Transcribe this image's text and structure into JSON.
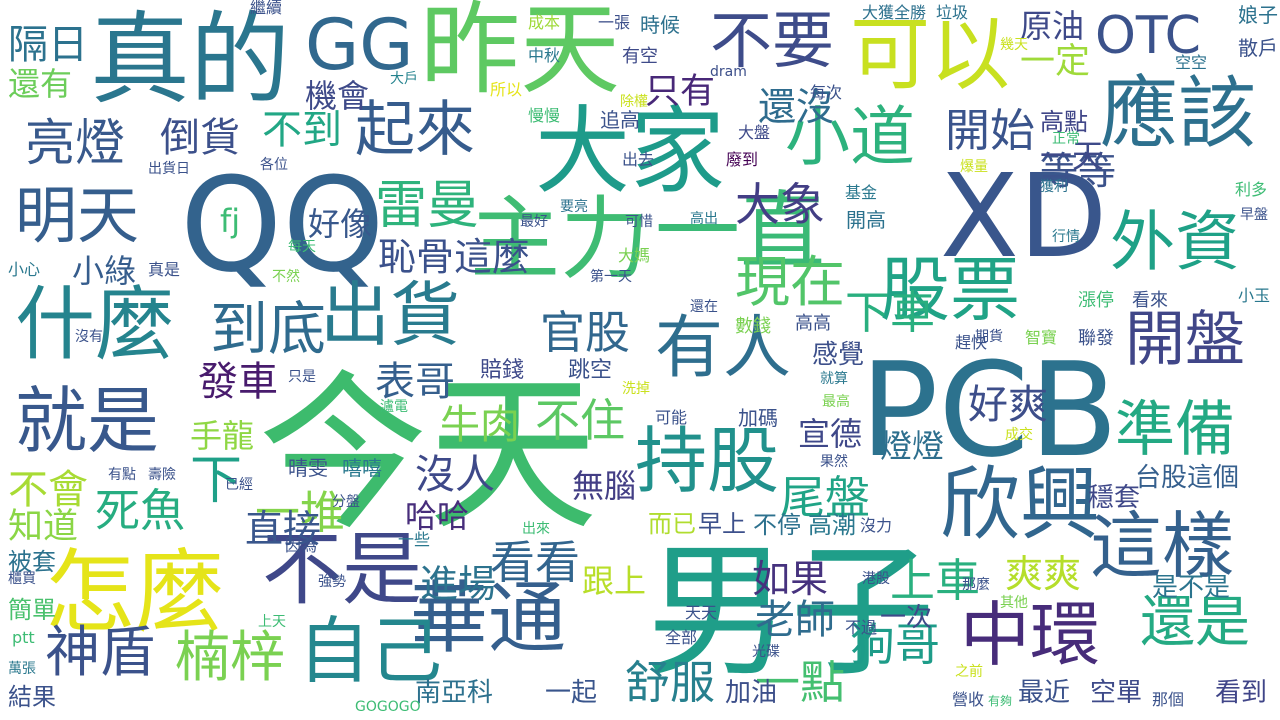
{
  "words": [
    {
      "text": "今天",
      "color": "#3dbb6d"
    },
    {
      "text": "PCB",
      "color": "#2c728e"
    },
    {
      "text": "QQ",
      "color": "#33638d"
    },
    {
      "text": "XD",
      "color": "#39568c"
    },
    {
      "text": "男子",
      "color": "#1f9e89"
    },
    {
      "text": "真的",
      "color": "#2a768e"
    },
    {
      "text": "昨天",
      "color": "#5ec962"
    },
    {
      "text": "大家",
      "color": "#1e9b8a"
    },
    {
      "text": "GG",
      "color": "#31688e"
    },
    {
      "text": "主力",
      "color": "#3fbc73"
    },
    {
      "text": "一直",
      "color": "#3aba76"
    },
    {
      "text": "怎麼",
      "color": "#e5e419"
    },
    {
      "text": "不是",
      "color": "#3f4889"
    },
    {
      "text": "什麼",
      "color": "#25848e"
    },
    {
      "text": "可以",
      "color": "#c8e020"
    },
    {
      "text": "不要",
      "color": "#3e4c8a"
    },
    {
      "text": "應該",
      "color": "#2d708e"
    },
    {
      "text": "欣興",
      "color": "#31668e"
    },
    {
      "text": "中環",
      "color": "#472c7a"
    },
    {
      "text": "出貨",
      "color": "#297b8e"
    },
    {
      "text": "華通",
      "color": "#355f8d"
    },
    {
      "text": "這樣",
      "color": "#34618d"
    },
    {
      "text": "就是",
      "color": "#38588c"
    },
    {
      "text": "自己",
      "color": "#24878e"
    },
    {
      "text": "持股",
      "color": "#21918c"
    },
    {
      "text": "股票",
      "color": "#20a386"
    },
    {
      "text": "有人",
      "color": "#2e6e8e"
    },
    {
      "text": "外資",
      "color": "#1fa187"
    },
    {
      "text": "小道",
      "color": "#2db27d"
    },
    {
      "text": "OTC",
      "color": "#3b528b"
    },
    {
      "text": "開盤",
      "color": "#404688"
    },
    {
      "text": "準備",
      "color": "#23a983"
    },
    {
      "text": "到底",
      "color": "#2f6b8e"
    },
    {
      "text": "起來",
      "color": "#365c8d"
    },
    {
      "text": "現在",
      "color": "#52c569"
    },
    {
      "text": "明天",
      "color": "#355e8d"
    },
    {
      "text": "雷曼",
      "color": "#2eb37c"
    },
    {
      "text": "神盾",
      "color": "#3b528b"
    },
    {
      "text": "楠梓",
      "color": "#7ad151"
    },
    {
      "text": "還是",
      "color": "#24aa83"
    },
    {
      "text": "亮燈",
      "color": "#38598c"
    },
    {
      "text": "死魚",
      "color": "#27ad81"
    },
    {
      "text": "一堆",
      "color": "#84d44b"
    },
    {
      "text": "狗哥",
      "color": "#1e9c89"
    },
    {
      "text": "一點",
      "color": "#44bf70"
    },
    {
      "text": "上車",
      "color": "#2ab07f"
    },
    {
      "text": "官股",
      "color": "#31678e"
    },
    {
      "text": "開始",
      "color": "#3a548c"
    },
    {
      "text": "大象",
      "color": "#433e85"
    },
    {
      "text": "倒貨",
      "color": "#3c508b"
    },
    {
      "text": "不到",
      "color": "#22a785"
    },
    {
      "text": "下車",
      "color": "#29af7f"
    },
    {
      "text": "看看",
      "color": "#32658e"
    },
    {
      "text": "尾盤",
      "color": "#20a486"
    },
    {
      "text": "發車",
      "color": "#481b6d"
    },
    {
      "text": "表哥",
      "color": "#355f8d"
    },
    {
      "text": "下",
      "color": "#1fa088"
    },
    {
      "text": "牛肉",
      "color": "#7ad151"
    },
    {
      "text": "直接",
      "color": "#39568c"
    },
    {
      "text": "舒服",
      "color": "#27808e"
    },
    {
      "text": "沒人",
      "color": "#3e4989"
    },
    {
      "text": "老師",
      "color": "#2f6c8e"
    },
    {
      "text": "不會",
      "color": "#a8db34"
    },
    {
      "text": "知道",
      "color": "#8bd646"
    },
    {
      "text": "恥骨這麼",
      "color": "#3b518b"
    },
    {
      "text": "好爽",
      "color": "#3d4e8a"
    },
    {
      "text": "爽爽",
      "color": "#b5de2b"
    },
    {
      "text": "進場",
      "color": "#2c738e"
    },
    {
      "text": "如果",
      "color": "#46327e"
    },
    {
      "text": "小綠",
      "color": "#365d8d"
    },
    {
      "text": "不住",
      "color": "#5cc863"
    },
    {
      "text": "等等",
      "color": "#3b528b"
    },
    {
      "text": "還沒",
      "color": "#2f6c8e"
    },
    {
      "text": "機會",
      "color": "#3e4a89"
    },
    {
      "text": "原油",
      "color": "#3e4989"
    },
    {
      "text": "隔日",
      "color": "#2c728e"
    },
    {
      "text": "還有",
      "color": "#6ccd5a"
    },
    {
      "text": "只有",
      "color": "#482878"
    },
    {
      "text": "一定",
      "color": "#9fda3a"
    },
    {
      "text": "好像",
      "color": "#38588c"
    },
    {
      "text": "fj",
      "color": "#3dbc74"
    },
    {
      "text": "一天",
      "color": "#3e4a89"
    },
    {
      "text": "哈哈",
      "color": "#472d7b"
    },
    {
      "text": "手龍",
      "color": "#8fd744"
    },
    {
      "text": "無腦",
      "color": "#433e85"
    },
    {
      "text": "宣德",
      "color": "#3f4889"
    },
    {
      "text": "燈燈",
      "color": "#2e6f8e"
    },
    {
      "text": "感覺",
      "color": "#3c4f8a"
    },
    {
      "text": "跟上",
      "color": "#b8de29"
    },
    {
      "text": "是不是",
      "color": "#2b748e"
    },
    {
      "text": "台股這個",
      "color": "#355f8d"
    },
    {
      "text": "南亞科",
      "color": "#2d718e"
    },
    {
      "text": "一起",
      "color": "#39558c"
    },
    {
      "text": "加油",
      "color": "#3c4f8a"
    },
    {
      "text": "最近",
      "color": "#3b528b"
    },
    {
      "text": "空單",
      "color": "#3e4a89"
    },
    {
      "text": "看到",
      "color": "#404588"
    },
    {
      "text": "一次",
      "color": "#3e4989"
    },
    {
      "text": "穩套",
      "color": "#3f4889"
    },
    {
      "text": "高潮",
      "color": "#2a788e"
    },
    {
      "text": "不停",
      "color": "#2d718e"
    },
    {
      "text": "而已",
      "color": "#b0dd2f"
    },
    {
      "text": "早上",
      "color": "#3c508b"
    },
    {
      "text": "被套",
      "color": "#2c728e"
    },
    {
      "text": "簡單",
      "color": "#4ac16d"
    },
    {
      "text": "結果",
      "color": "#3b528b"
    },
    {
      "text": "高點",
      "color": "#404688"
    },
    {
      "text": "娘子",
      "color": "#2c728e"
    },
    {
      "text": "散戶",
      "color": "#3b528b"
    },
    {
      "text": "大獲全勝",
      "color": "#2d718e"
    },
    {
      "text": "垃圾",
      "color": "#2c728e"
    },
    {
      "text": "時候",
      "color": "#2d718e"
    },
    {
      "text": "有空",
      "color": "#3e4a89"
    },
    {
      "text": "一張",
      "color": "#3c4f8a"
    },
    {
      "text": "繼續",
      "color": "#3b528b"
    },
    {
      "text": "成本",
      "color": "#9fda3a"
    },
    {
      "text": "中秋",
      "color": "#2a788e"
    },
    {
      "text": "大戶",
      "color": "#25838e"
    },
    {
      "text": "所以",
      "color": "#e5e419"
    },
    {
      "text": "除權",
      "color": "#cae11f"
    },
    {
      "text": "每次",
      "color": "#3b528b"
    },
    {
      "text": "dram",
      "color": "#3c4f8a"
    },
    {
      "text": "空空",
      "color": "#2c728e"
    },
    {
      "text": "幾天",
      "color": "#cae11f"
    },
    {
      "text": "追高",
      "color": "#3b528b"
    },
    {
      "text": "慢慢",
      "color": "#3dbc74"
    },
    {
      "text": "大盤",
      "color": "#3e4a89"
    },
    {
      "text": "廢到",
      "color": "#440154"
    },
    {
      "text": "出去",
      "color": "#3b528b"
    },
    {
      "text": "出貨日",
      "color": "#3b528b"
    },
    {
      "text": "各位",
      "color": "#3b528b"
    },
    {
      "text": "正常",
      "color": "#3dbc74"
    },
    {
      "text": "爆量",
      "color": "#cae11f"
    },
    {
      "text": "利多",
      "color": "#3dbc74"
    },
    {
      "text": "獲利",
      "color": "#2c728e"
    },
    {
      "text": "基金",
      "color": "#2a788e"
    },
    {
      "text": "開高",
      "color": "#2c728e"
    },
    {
      "text": "要亮",
      "color": "#2c728e"
    },
    {
      "text": "最好",
      "color": "#3b528b"
    },
    {
      "text": "可惜",
      "color": "#3b528b"
    },
    {
      "text": "高出",
      "color": "#2a788e"
    },
    {
      "text": "早盤",
      "color": "#3b528b"
    },
    {
      "text": "行情",
      "color": "#2a788e"
    },
    {
      "text": "每天",
      "color": "#3dbc74"
    },
    {
      "text": "小心",
      "color": "#2a788e"
    },
    {
      "text": "真是",
      "color": "#3b528b"
    },
    {
      "text": "不然",
      "color": "#7ad151"
    },
    {
      "text": "大媽",
      "color": "#7ad151"
    },
    {
      "text": "第一天",
      "color": "#3b528b"
    },
    {
      "text": "漲停",
      "color": "#3dbc74"
    },
    {
      "text": "看來",
      "color": "#3b528b"
    },
    {
      "text": "小玉",
      "color": "#2a788e"
    },
    {
      "text": "數錢",
      "color": "#7ad151"
    },
    {
      "text": "還在",
      "color": "#3b528b"
    },
    {
      "text": "高高",
      "color": "#3b528b"
    },
    {
      "text": "沒有",
      "color": "#3b528b"
    },
    {
      "text": "期貨",
      "color": "#3b528b"
    },
    {
      "text": "智寶",
      "color": "#7ad151"
    },
    {
      "text": "聯發",
      "color": "#3b528b"
    },
    {
      "text": "趕快",
      "color": "#3b528b"
    },
    {
      "text": "只是",
      "color": "#3b528b"
    },
    {
      "text": "賠錢",
      "color": "#3e4989"
    },
    {
      "text": "跳空",
      "color": "#3b528b"
    },
    {
      "text": "就算",
      "color": "#2a788e"
    },
    {
      "text": "洗掉",
      "color": "#cae11f"
    },
    {
      "text": "瀘電",
      "color": "#3dbc74"
    },
    {
      "text": "最高",
      "color": "#7ad151"
    },
    {
      "text": "可能",
      "color": "#3b528b"
    },
    {
      "text": "加碼",
      "color": "#3b528b"
    },
    {
      "text": "成交",
      "color": "#cae11f"
    },
    {
      "text": "有點",
      "color": "#3b528b"
    },
    {
      "text": "壽險",
      "color": "#3b528b"
    },
    {
      "text": "果然",
      "color": "#3b528b"
    },
    {
      "text": "晴雯",
      "color": "#3b528b"
    },
    {
      "text": "嘻嘻",
      "color": "#2a788e"
    },
    {
      "text": "已經",
      "color": "#3b528b"
    },
    {
      "text": "分盤",
      "color": "#3b528b"
    },
    {
      "text": "出來",
      "color": "#3dbc74"
    },
    {
      "text": "一些",
      "color": "#2a788e"
    },
    {
      "text": "因為",
      "color": "#3b528b"
    },
    {
      "text": "沒力",
      "color": "#3b528b"
    },
    {
      "text": "強勢",
      "color": "#3b528b"
    },
    {
      "text": "櫃買",
      "color": "#3b528b"
    },
    {
      "text": "港股",
      "color": "#3b528b"
    },
    {
      "text": "那麼",
      "color": "#3b528b"
    },
    {
      "text": "其他",
      "color": "#7ad151"
    },
    {
      "text": "天天",
      "color": "#3b528b"
    },
    {
      "text": "上天",
      "color": "#3dbc74"
    },
    {
      "text": "不過",
      "color": "#3b528b"
    },
    {
      "text": "全部",
      "color": "#3b528b"
    },
    {
      "text": "光碟",
      "color": "#3b528b"
    },
    {
      "text": "ptt",
      "color": "#3dbc74"
    },
    {
      "text": "萬張",
      "color": "#2a788e"
    },
    {
      "text": "之前",
      "color": "#cae11f"
    },
    {
      "text": "GOGOGO",
      "color": "#3dbc74"
    },
    {
      "text": "營收",
      "color": "#3b528b"
    },
    {
      "text": "有夠",
      "color": "#3dbc74"
    },
    {
      "text": "那個",
      "color": "#3b528b"
    }
  ]
}
